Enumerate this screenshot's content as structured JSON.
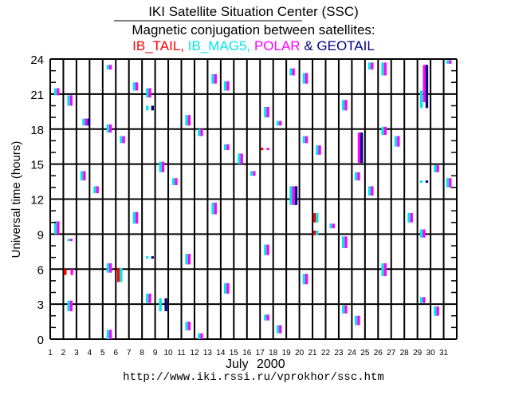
{
  "header": {
    "title": "IKI Satellite Situation Center (SSC)",
    "subtitle": "Magnetic conjugation between satellites:",
    "legend": [
      {
        "label": "IB_TAIL,",
        "color": "#ff0000"
      },
      {
        "label": "IB_MAG5,",
        "color": "#00e6e6"
      },
      {
        "label": "POLAR",
        "color": "#ff00ff"
      },
      {
        "label": "&",
        "color": "#000080"
      },
      {
        "label": "GEOTAIL",
        "color": "#000080"
      }
    ]
  },
  "footer": {
    "month": "July",
    "year": "2000",
    "url": "http://www.iki.rssi.ru/vprokhor/ssc.htm"
  },
  "chart_data": {
    "type": "scatter",
    "title": "Magnetic conjugation between satellites",
    "xlabel": "July 2000",
    "ylabel": "Universal time (hours)",
    "xlim": [
      1,
      32
    ],
    "ylim": [
      0,
      24
    ],
    "xticks": [
      "1",
      "2",
      "3",
      "4",
      "5",
      "6",
      "7",
      "8",
      "9",
      "10",
      "11",
      "12",
      "13",
      "14",
      "15",
      "16",
      "17",
      "18",
      "19",
      "20",
      "21",
      "22",
      "23",
      "24",
      "25",
      "26",
      "27",
      "28",
      "29",
      "30",
      "31"
    ],
    "yticks": [
      "0",
      "3",
      "6",
      "9",
      "12",
      "15",
      "18",
      "21",
      "24"
    ],
    "grid": true,
    "satellite_colors": {
      "R": "#ff0000",
      "C": "#00e6e6",
      "M": "#ff00ff",
      "N": "#000080"
    },
    "satellite_names": {
      "R": "IB_TAIL",
      "C": "IB_MAG5",
      "M": "POLAR",
      "N": "GEOTAIL"
    },
    "intervals": [
      {
        "day": 1.3,
        "h": [
          20.9,
          21.5
        ],
        "sats": "CM"
      },
      {
        "day": 1.3,
        "h": [
          9.0,
          10.1
        ],
        "sats": "CM"
      },
      {
        "day": 2.3,
        "h": [
          20.0,
          20.9
        ],
        "sats": "CM"
      },
      {
        "day": 2.3,
        "h": [
          8.4,
          8.6
        ],
        "sats": "CM"
      },
      {
        "day": 2.05,
        "h": [
          5.5,
          6.0
        ],
        "sats": "R"
      },
      {
        "day": 2.55,
        "h": [
          5.5,
          6.0
        ],
        "sats": "M"
      },
      {
        "day": 2.3,
        "h": [
          2.4,
          3.3
        ],
        "sats": "CM"
      },
      {
        "day": 3.45,
        "h": [
          18.3,
          18.9
        ],
        "sats": "CMN"
      },
      {
        "day": 3.3,
        "h": [
          13.6,
          14.4
        ],
        "sats": "CM"
      },
      {
        "day": 4.3,
        "h": [
          12.5,
          13.1
        ],
        "sats": "CM"
      },
      {
        "day": 5.3,
        "h": [
          23.1,
          23.5
        ],
        "sats": "CM"
      },
      {
        "day": 5.3,
        "h": [
          17.7,
          18.4
        ],
        "sats": "CM"
      },
      {
        "day": 5.3,
        "h": [
          5.7,
          6.5
        ],
        "sats": "CM"
      },
      {
        "day": 5.3,
        "h": [
          0.0,
          0.8
        ],
        "sats": "CM"
      },
      {
        "day": 6.1,
        "h": [
          4.9,
          6.1
        ],
        "sats": "RC"
      },
      {
        "day": 6.3,
        "h": [
          16.8,
          17.4
        ],
        "sats": "CM"
      },
      {
        "day": 7.3,
        "h": [
          21.3,
          22.0
        ],
        "sats": "CM"
      },
      {
        "day": 7.3,
        "h": [
          9.9,
          10.9
        ],
        "sats": "CM"
      },
      {
        "day": 8.3,
        "h": [
          20.7,
          21.5
        ],
        "sats": "CM"
      },
      {
        "day": 8.3,
        "h": [
          19.6,
          20.0
        ],
        "sats": "C"
      },
      {
        "day": 8.7,
        "h": [
          19.6,
          20.0
        ],
        "sats": "N"
      },
      {
        "day": 8.3,
        "h": [
          6.9,
          7.1
        ],
        "sats": "C"
      },
      {
        "day": 8.7,
        "h": [
          6.9,
          7.1
        ],
        "sats": "N"
      },
      {
        "day": 8.3,
        "h": [
          3.1,
          3.9
        ],
        "sats": "CM"
      },
      {
        "day": 9.3,
        "h": [
          14.3,
          15.2
        ],
        "sats": "CM"
      },
      {
        "day": 9.3,
        "h": [
          2.4,
          3.5
        ],
        "sats": "C"
      },
      {
        "day": 9.72,
        "h": [
          2.4,
          3.5
        ],
        "sats": "N"
      },
      {
        "day": 10.3,
        "h": [
          13.2,
          13.8
        ],
        "sats": "CM"
      },
      {
        "day": 11.3,
        "h": [
          18.3,
          19.2
        ],
        "sats": "CM"
      },
      {
        "day": 11.3,
        "h": [
          6.4,
          7.3
        ],
        "sats": "CM"
      },
      {
        "day": 11.3,
        "h": [
          0.75,
          1.5
        ],
        "sats": "CM"
      },
      {
        "day": 12.25,
        "h": [
          17.4,
          18.0
        ],
        "sats": "CM"
      },
      {
        "day": 12.25,
        "h": [
          0.0,
          0.5
        ],
        "sats": "CM"
      },
      {
        "day": 13.3,
        "h": [
          21.9,
          22.7
        ],
        "sats": "CM"
      },
      {
        "day": 13.3,
        "h": [
          10.7,
          11.7
        ],
        "sats": "CM"
      },
      {
        "day": 14.25,
        "h": [
          21.3,
          22.1
        ],
        "sats": "CM"
      },
      {
        "day": 14.25,
        "h": [
          16.2,
          16.7
        ],
        "sats": "CM"
      },
      {
        "day": 14.25,
        "h": [
          3.9,
          4.8
        ],
        "sats": "CM"
      },
      {
        "day": 15.3,
        "h": [
          15.0,
          15.9
        ],
        "sats": "CM"
      },
      {
        "day": 16.25,
        "h": [
          14.0,
          14.4
        ],
        "sats": "CM"
      },
      {
        "day": 17.05,
        "h": [
          16.2,
          16.4
        ],
        "sats": "R"
      },
      {
        "day": 17.5,
        "h": [
          16.2,
          16.4
        ],
        "sats": "M"
      },
      {
        "day": 17.3,
        "h": [
          19.0,
          19.9
        ],
        "sats": "CM"
      },
      {
        "day": 17.3,
        "h": [
          7.2,
          8.1
        ],
        "sats": "CM"
      },
      {
        "day": 17.3,
        "h": [
          1.6,
          2.1
        ],
        "sats": "CM"
      },
      {
        "day": 18.25,
        "h": [
          18.3,
          18.7
        ],
        "sats": "CM"
      },
      {
        "day": 18.25,
        "h": [
          0.5,
          1.2
        ],
        "sats": "CM"
      },
      {
        "day": 19.25,
        "h": [
          22.6,
          23.2
        ],
        "sats": "CM"
      },
      {
        "day": 19.25,
        "h": [
          11.5,
          13.1
        ],
        "sats": "CMN"
      },
      {
        "day": 20.25,
        "h": [
          21.9,
          22.8
        ],
        "sats": "CM"
      },
      {
        "day": 20.25,
        "h": [
          16.8,
          17.4
        ],
        "sats": "CM"
      },
      {
        "day": 20.25,
        "h": [
          4.7,
          5.6
        ],
        "sats": "CM"
      },
      {
        "day": 21.05,
        "h": [
          10.0,
          10.8
        ],
        "sats": "RC"
      },
      {
        "day": 21.05,
        "h": [
          8.9,
          9.3
        ],
        "sats": "RC"
      },
      {
        "day": 21.25,
        "h": [
          15.8,
          16.6
        ],
        "sats": "CM"
      },
      {
        "day": 22.3,
        "h": [
          9.5,
          9.9
        ],
        "sats": "CM"
      },
      {
        "day": 23.25,
        "h": [
          19.6,
          20.5
        ],
        "sats": "CM"
      },
      {
        "day": 23.25,
        "h": [
          7.8,
          8.8
        ],
        "sats": "CM"
      },
      {
        "day": 23.25,
        "h": [
          2.2,
          2.9
        ],
        "sats": "CM"
      },
      {
        "day": 24.22,
        "h": [
          13.6,
          14.3
        ],
        "sats": "CM"
      },
      {
        "day": 24.22,
        "h": [
          1.2,
          2.0
        ],
        "sats": "CM"
      },
      {
        "day": 24.45,
        "h": [
          15.1,
          17.7
        ],
        "sats": "MN"
      },
      {
        "day": 25.25,
        "h": [
          23.1,
          23.7
        ],
        "sats": "CM"
      },
      {
        "day": 25.25,
        "h": [
          12.3,
          13.1
        ],
        "sats": "CM"
      },
      {
        "day": 26.25,
        "h": [
          22.6,
          23.7
        ],
        "sats": "CM"
      },
      {
        "day": 26.25,
        "h": [
          17.5,
          18.2
        ],
        "sats": "CM"
      },
      {
        "day": 26.25,
        "h": [
          5.4,
          6.5
        ],
        "sats": "CM"
      },
      {
        "day": 27.25,
        "h": [
          16.5,
          17.4
        ],
        "sats": "CM"
      },
      {
        "day": 28.25,
        "h": [
          10.0,
          10.8
        ],
        "sats": "CM"
      },
      {
        "day": 29.2,
        "h": [
          19.8,
          21.3
        ],
        "sats": "C"
      },
      {
        "day": 29.42,
        "h": [
          20.3,
          23.5
        ],
        "sats": "M"
      },
      {
        "day": 29.62,
        "h": [
          19.8,
          23.5
        ],
        "sats": "N"
      },
      {
        "day": 29.2,
        "h": [
          13.4,
          13.6
        ],
        "sats": "C"
      },
      {
        "day": 29.62,
        "h": [
          13.4,
          13.6
        ],
        "sats": "N"
      },
      {
        "day": 29.2,
        "h": [
          8.7,
          9.4
        ],
        "sats": "CM"
      },
      {
        "day": 29.2,
        "h": [
          3.1,
          3.6
        ],
        "sats": "CM"
      },
      {
        "day": 30.25,
        "h": [
          14.3,
          14.9
        ],
        "sats": "CM"
      },
      {
        "day": 30.25,
        "h": [
          2.0,
          2.8
        ],
        "sats": "CM"
      },
      {
        "day": 31.2,
        "h": [
          23.6,
          23.9
        ],
        "sats": "CM"
      },
      {
        "day": 31.2,
        "h": [
          13.0,
          13.8
        ],
        "sats": "CM"
      }
    ]
  }
}
